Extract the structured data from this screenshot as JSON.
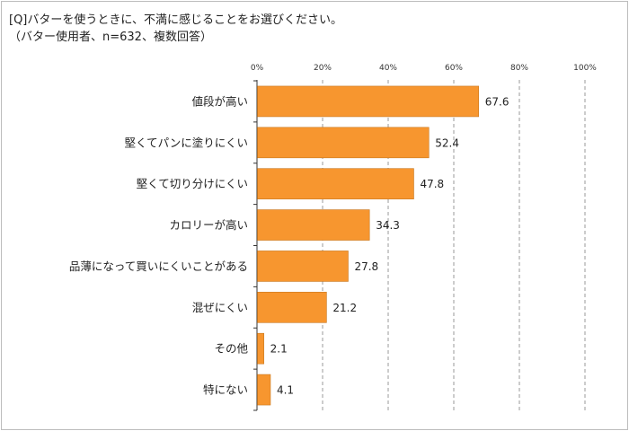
{
  "title": "[Q]バターを使うときに、不満に感じることをお選びください。",
  "subtitle": "（バター使用者、n=632、複数回答）",
  "colors": {
    "bar": "#F7962F",
    "bar_edge": "#C8771E",
    "grid": "#9a9a9a",
    "axis": "#333333"
  },
  "chart_data": {
    "type": "bar",
    "orientation": "horizontal",
    "title": "[Q]バターを使うときに、不満に感じることをお選びください。",
    "subtitle": "（バター使用者、n=632、複数回答）",
    "categories": [
      "値段が高い",
      "堅くてパンに塗りにくい",
      "堅くて切り分けにくい",
      "カロリーが高い",
      "品薄になって買いにくいことがある",
      "混ぜにくい",
      "その他",
      "特にない"
    ],
    "values": [
      67.6,
      52.4,
      47.8,
      34.3,
      27.8,
      21.2,
      2.1,
      4.1
    ],
    "value_labels": [
      "67.6",
      "52.4",
      "47.8",
      "34.3",
      "27.8",
      "21.2",
      "2.1",
      "4.1"
    ],
    "xlim": [
      0,
      100
    ],
    "xticks": [
      "0%",
      "20%",
      "40%",
      "60%",
      "80%",
      "100%"
    ],
    "grid": "vertical dashed",
    "legend": "none"
  }
}
